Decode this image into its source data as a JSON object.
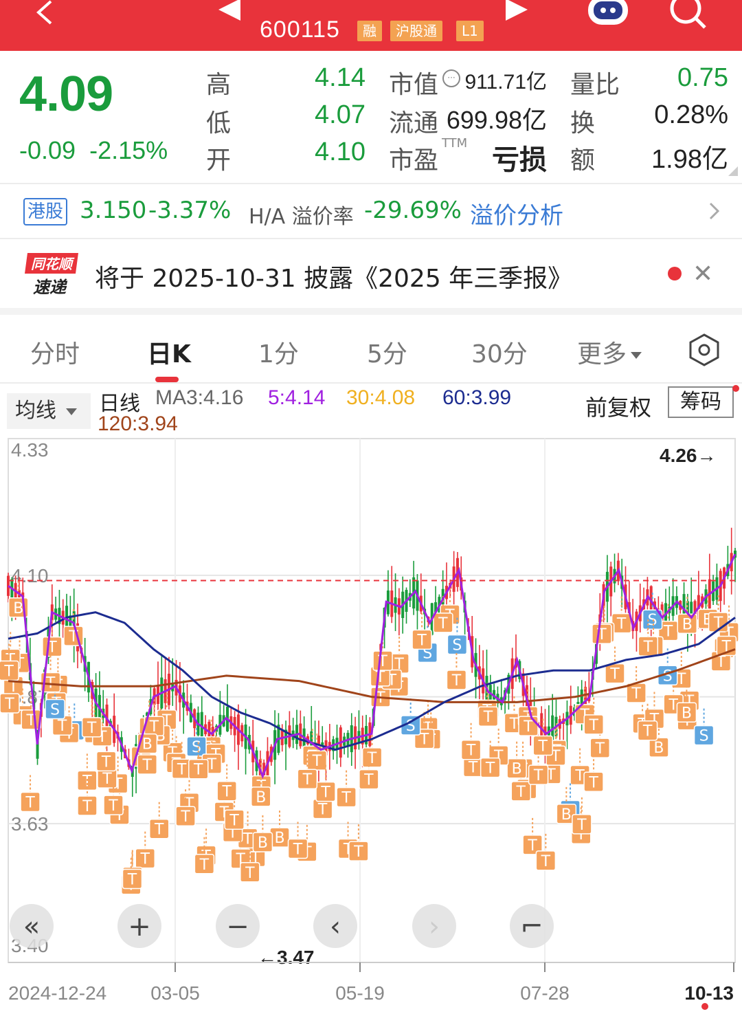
{
  "header": {
    "stock_code": "600115",
    "tags": [
      "融",
      "沪股通",
      "L1"
    ],
    "bg_color": "#e8333b",
    "icons": [
      "back-icon",
      "prev-stock-icon",
      "next-stock-icon",
      "robot-icon",
      "search-icon"
    ]
  },
  "quote": {
    "price": "4.09",
    "change": "-0.09",
    "change_pct": "-2.15%",
    "high_label": "高",
    "high": "4.14",
    "low_label": "低",
    "low": "4.07",
    "open_label": "开",
    "open": "4.10",
    "mktcap_label": "市值",
    "mktcap": "911.71亿",
    "float_label": "流通",
    "float": "699.98亿",
    "pe_label": "市盈",
    "pe_sup": "TTM",
    "pe": "亏损",
    "vr_label": "量比",
    "vr": "0.75",
    "turnover_label": "换",
    "turnover": "0.28%",
    "amount_label": "额",
    "amount": "1.98亿"
  },
  "hk": {
    "badge": "港股",
    "price": "3.150",
    "pct": "-3.37%",
    "premium_label": "H/A 溢价率",
    "premium": "-29.69%",
    "link": "溢价分析"
  },
  "notice": {
    "logo_line1": "同花顺",
    "logo_line2": "速递",
    "text": "将于 2025-10-31 披露《2025 年三季报》"
  },
  "tabs": [
    {
      "label": "分时"
    },
    {
      "label": "日K"
    },
    {
      "label": "1分"
    },
    {
      "label": "5分"
    },
    {
      "label": "30分"
    },
    {
      "label": "更多"
    }
  ],
  "ma_bar": {
    "selector": "均线",
    "period": "日线",
    "ma3": "MA3:4.16",
    "ma5": "5:4.14",
    "ma30": "30:4.08",
    "ma60": "60:3.99",
    "ma120": "120:3.94",
    "adjust": "前复权",
    "chips": "筹码"
  },
  "colors": {
    "up": "#e8333b",
    "down": "#1a9c3c",
    "ma3": "#f0a020",
    "ma5": "#a020e0",
    "ma30": "#f0b020",
    "ma60": "#1c2c90",
    "ma120": "#a0441a",
    "signal": "#f5a25b",
    "signal_s": "#5fa6e0"
  },
  "chart_data": {
    "type": "candlestick",
    "ylim": [
      3.4,
      4.33
    ],
    "y_ticks": [
      "4.33",
      "4.10",
      "3.87",
      "3.63",
      "3.40"
    ],
    "x_ticks": [
      "2024-12-24",
      "03-05",
      "05-19",
      "07-28",
      "10-13"
    ],
    "max_label": "4.26→",
    "min_label": "←3.47",
    "dashed_price": 4.09,
    "ma60_path": [
      [
        0,
        3.98
      ],
      [
        4,
        3.99
      ],
      [
        8,
        4.02
      ],
      [
        12,
        4.03
      ],
      [
        16,
        4.01
      ],
      [
        20,
        3.96
      ],
      [
        24,
        3.92
      ],
      [
        28,
        3.87
      ],
      [
        32,
        3.84
      ],
      [
        36,
        3.82
      ],
      [
        40,
        3.79
      ],
      [
        45,
        3.77
      ],
      [
        50,
        3.79
      ],
      [
        55,
        3.82
      ],
      [
        60,
        3.86
      ],
      [
        65,
        3.89
      ],
      [
        70,
        3.91
      ],
      [
        75,
        3.92
      ],
      [
        80,
        3.92
      ],
      [
        85,
        3.94
      ],
      [
        90,
        3.95
      ],
      [
        95,
        3.97
      ],
      [
        100,
        4.02
      ]
    ],
    "ma120_path": [
      [
        0,
        3.9
      ],
      [
        10,
        3.89
      ],
      [
        20,
        3.89
      ],
      [
        30,
        3.91
      ],
      [
        40,
        3.9
      ],
      [
        50,
        3.87
      ],
      [
        60,
        3.86
      ],
      [
        70,
        3.86
      ],
      [
        78,
        3.87
      ],
      [
        85,
        3.89
      ],
      [
        92,
        3.92
      ],
      [
        100,
        3.96
      ]
    ],
    "ma5_path": [
      [
        0,
        4.08
      ],
      [
        2,
        4.06
      ],
      [
        4,
        3.78
      ],
      [
        6,
        4.03
      ],
      [
        9,
        4.01
      ],
      [
        12,
        3.86
      ],
      [
        15,
        3.8
      ],
      [
        17,
        3.73
      ],
      [
        20,
        3.87
      ],
      [
        23,
        3.89
      ],
      [
        26,
        3.82
      ],
      [
        28,
        3.8
      ],
      [
        30,
        3.83
      ],
      [
        33,
        3.79
      ],
      [
        35,
        3.72
      ],
      [
        37,
        3.79
      ],
      [
        40,
        3.8
      ],
      [
        43,
        3.77
      ],
      [
        45,
        3.78
      ],
      [
        47,
        3.79
      ],
      [
        50,
        3.8
      ],
      [
        52,
        4.05
      ],
      [
        54,
        4.04
      ],
      [
        56,
        4.07
      ],
      [
        58,
        4.01
      ],
      [
        60,
        4.06
      ],
      [
        62,
        4.11
      ],
      [
        64,
        3.94
      ],
      [
        66,
        3.88
      ],
      [
        68,
        3.86
      ],
      [
        70,
        3.94
      ],
      [
        72,
        3.83
      ],
      [
        74,
        3.8
      ],
      [
        77,
        3.83
      ],
      [
        80,
        3.87
      ],
      [
        82,
        4.07
      ],
      [
        84,
        4.11
      ],
      [
        86,
        4.0
      ],
      [
        88,
        4.06
      ],
      [
        90,
        4.02
      ],
      [
        92,
        4.05
      ],
      [
        94,
        4.02
      ],
      [
        96,
        4.06
      ],
      [
        98,
        4.08
      ],
      [
        100,
        4.14
      ]
    ]
  },
  "chart_controls": [
    "collapse-icon",
    "zoom-in-icon",
    "zoom-out-icon",
    "prev-icon",
    "next-icon",
    "fullscreen-icon"
  ]
}
